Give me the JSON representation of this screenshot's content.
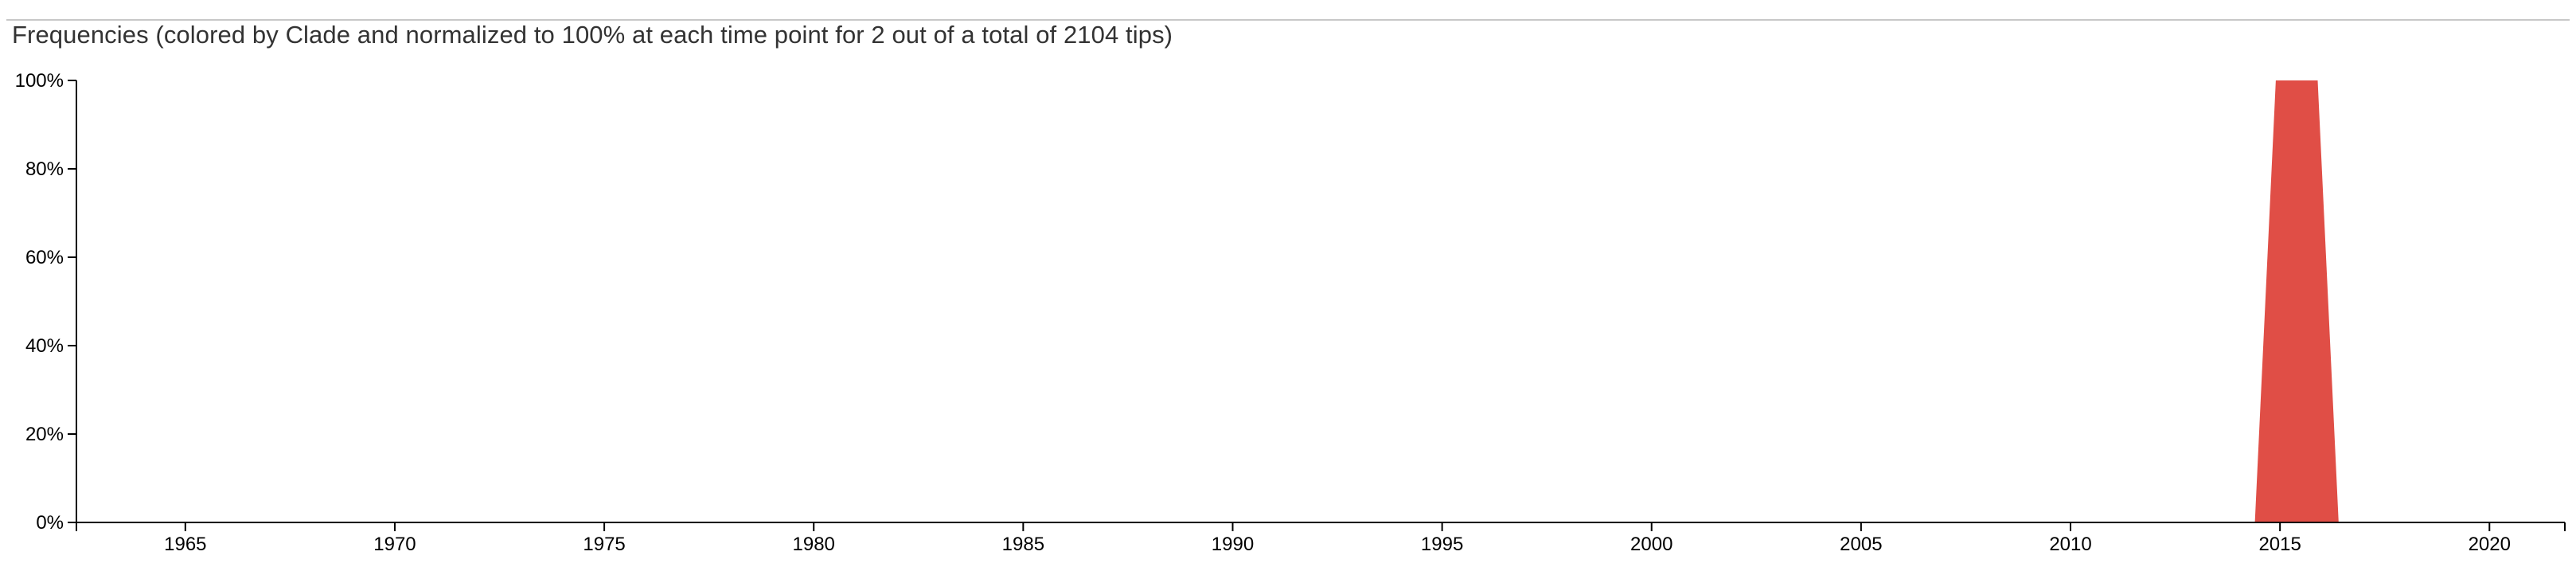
{
  "chart_data": {
    "type": "area",
    "title": "Frequencies (colored by Clade and normalized to 100% at each time point for 2 out of a total of 2104 tips)",
    "xlabel": "",
    "ylabel": "",
    "xlim": [
      1962.4,
      2021.8
    ],
    "ylim": [
      0,
      100
    ],
    "x_ticks": [
      1965,
      1970,
      1975,
      1980,
      1985,
      1990,
      1995,
      2000,
      2005,
      2010,
      2015,
      2020
    ],
    "y_ticks": [
      0,
      20,
      40,
      60,
      80,
      100
    ],
    "y_tick_labels": [
      "0%",
      "20%",
      "40%",
      "60%",
      "80%",
      "100%"
    ],
    "grid": false,
    "series": [
      {
        "color": "#e04e46",
        "x": [
          2014.4,
          2014.9,
          2015.9,
          2016.4
        ],
        "values": [
          0,
          100,
          100,
          0
        ]
      }
    ]
  }
}
